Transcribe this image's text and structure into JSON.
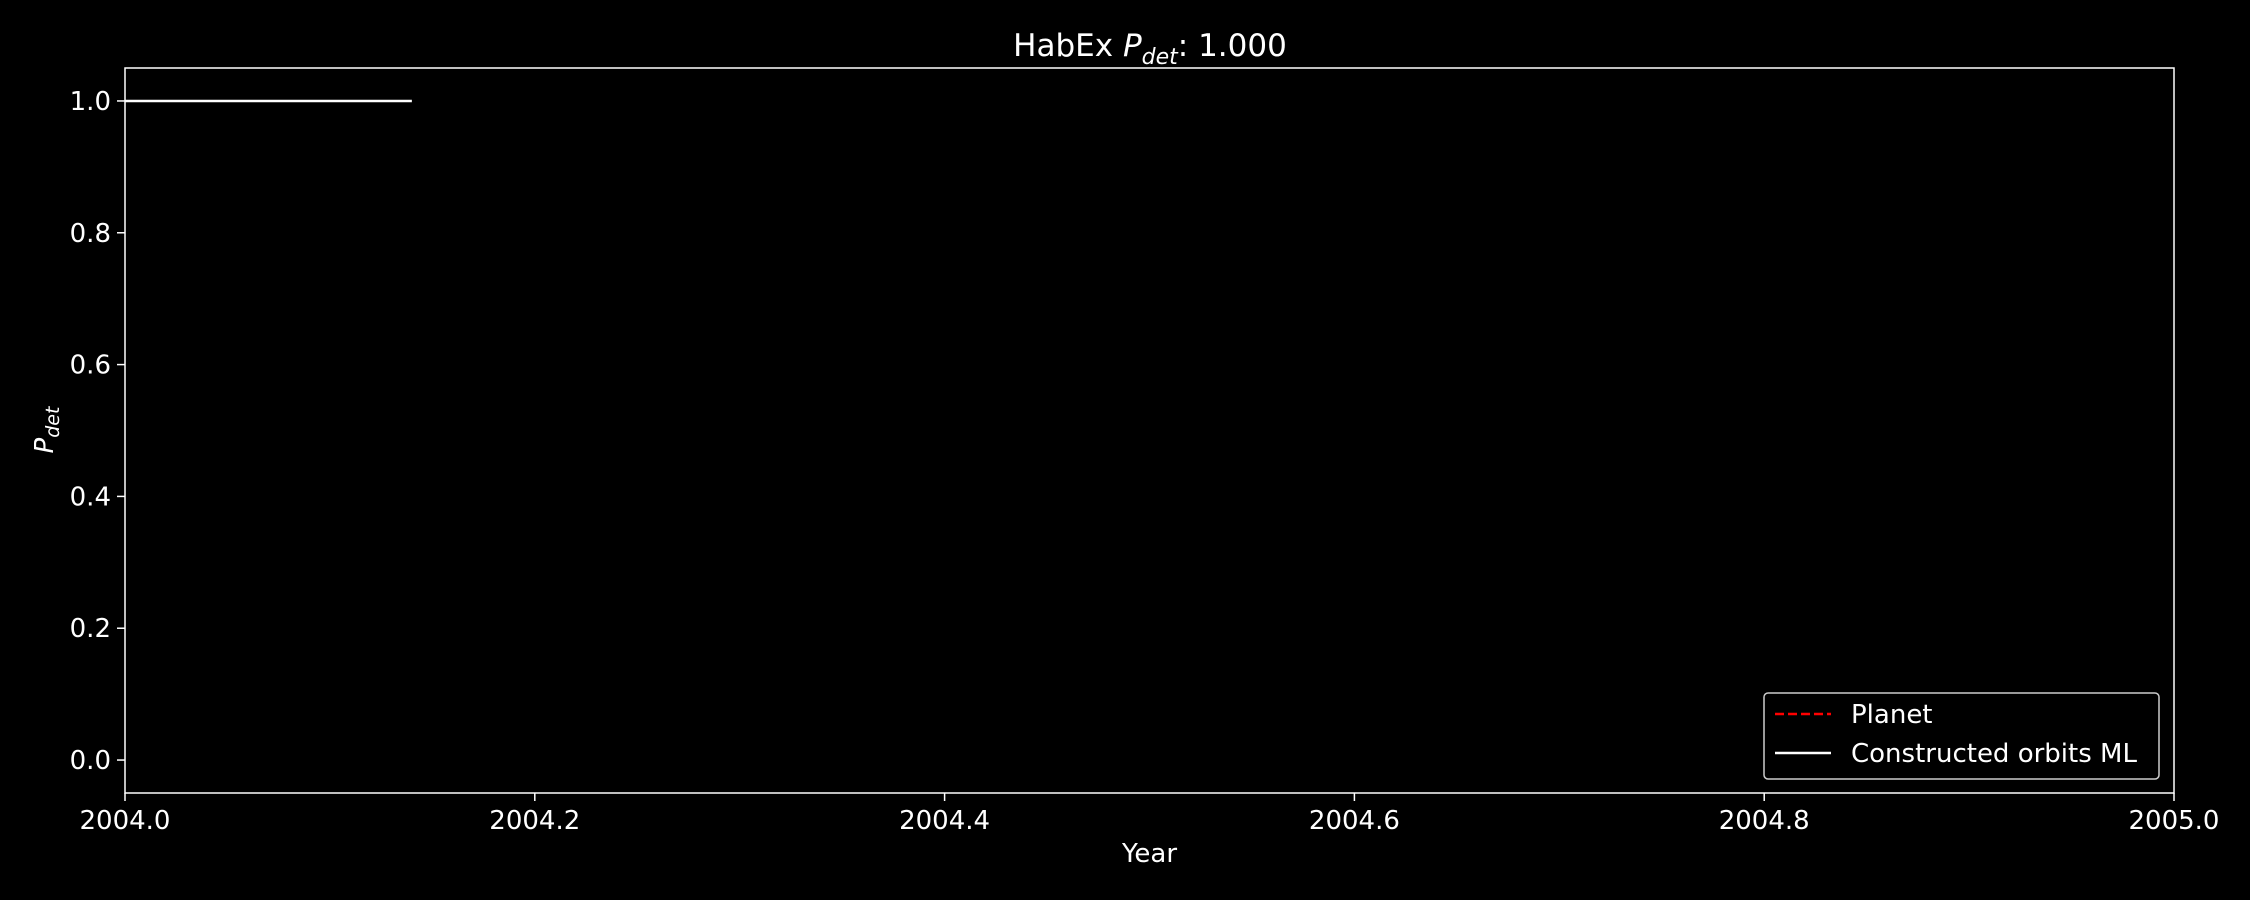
{
  "chart_data": {
    "type": "line",
    "title_prefix": "HabEx ",
    "title_symbol": "P",
    "title_subscript": "det",
    "title_suffix": ": 1.000",
    "xlabel": "Year",
    "ylabel_symbol": "P",
    "ylabel_subscript": "det",
    "xlim": [
      2004.0,
      2005.0
    ],
    "ylim": [
      -0.05,
      1.05
    ],
    "xticks": [
      "2004.0",
      "2004.2",
      "2004.4",
      "2004.6",
      "2004.8",
      "2005.0"
    ],
    "yticks": [
      "0.0",
      "0.2",
      "0.4",
      "0.6",
      "0.8",
      "1.0"
    ],
    "grid": false,
    "legend_position": "lower-right",
    "series": [
      {
        "name": "Planet",
        "color": "#ff0000",
        "style": "dashed",
        "x": [],
        "y": []
      },
      {
        "name": "Constructed orbits ML",
        "color": "#ffffff",
        "style": "solid",
        "x": [
          2004.0,
          2004.14
        ],
        "y": [
          1.0,
          1.0
        ]
      }
    ]
  }
}
